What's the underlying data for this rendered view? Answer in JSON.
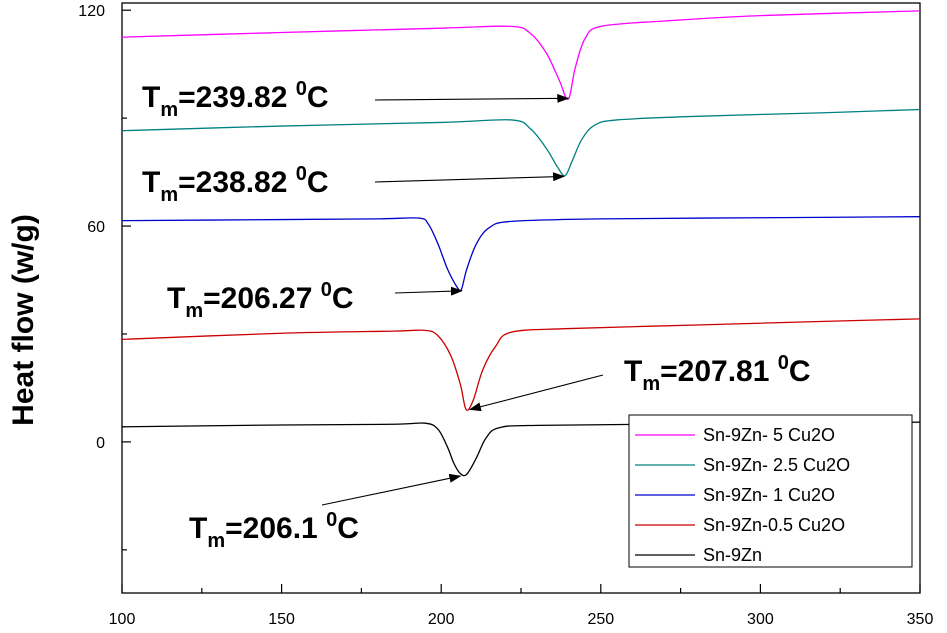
{
  "chart_data": {
    "type": "line",
    "title": "",
    "xlabel": "",
    "ylabel": "Heat flow (w/g)",
    "xlim": [
      100,
      350
    ],
    "ylim": [
      -42,
      122
    ],
    "x_ticks": [
      "100",
      "150",
      "200",
      "250",
      "300",
      "350"
    ],
    "y_ticks": [
      "0",
      "60",
      "120"
    ],
    "grid": false,
    "legend_position": "bottom-right",
    "series": [
      {
        "name": "Sn-9Zn- 5 Cu2O",
        "color": "#ff00ff",
        "points": [
          [
            100,
            112.5
          ],
          [
            150,
            113.8
          ],
          [
            200,
            115.0
          ],
          [
            222,
            115.5
          ],
          [
            228,
            113.5
          ],
          [
            233,
            108.0
          ],
          [
            237,
            100.5
          ],
          [
            239.8,
            95.3
          ],
          [
            242,
            104.0
          ],
          [
            245,
            112.0
          ],
          [
            250,
            115.5
          ],
          [
            270,
            117.0
          ],
          [
            300,
            118.5
          ],
          [
            350,
            119.8
          ]
        ]
      },
      {
        "name": "Sn-9Zn- 2.5 Cu2O",
        "color": "#008080",
        "points": [
          [
            100,
            86.5
          ],
          [
            150,
            87.8
          ],
          [
            200,
            88.8
          ],
          [
            222,
            89.5
          ],
          [
            228,
            87.0
          ],
          [
            233,
            81.5
          ],
          [
            236.5,
            76.3
          ],
          [
            238.8,
            74.0
          ],
          [
            241,
            78.0
          ],
          [
            244,
            84.0
          ],
          [
            248,
            88.0
          ],
          [
            255,
            89.5
          ],
          [
            280,
            90.5
          ],
          [
            320,
            91.5
          ],
          [
            350,
            92.4
          ]
        ]
      },
      {
        "name": "Sn-9Zn- 1 Cu2O",
        "color": "#0000cc",
        "points": [
          [
            100,
            61.5
          ],
          [
            150,
            61.8
          ],
          [
            180,
            62.0
          ],
          [
            193,
            62.2
          ],
          [
            196,
            60.5
          ],
          [
            199,
            55.0
          ],
          [
            202,
            48.0
          ],
          [
            205,
            43.0
          ],
          [
            206.3,
            42.3
          ],
          [
            208,
            48.0
          ],
          [
            211,
            55.0
          ],
          [
            215,
            59.5
          ],
          [
            222,
            61.3
          ],
          [
            250,
            62.0
          ],
          [
            300,
            62.3
          ],
          [
            350,
            62.6
          ]
        ]
      },
      {
        "name": "Sn-9Zn-0.5 Cu2O",
        "color": "#cc0000",
        "points": [
          [
            100,
            28.5
          ],
          [
            150,
            30.2
          ],
          [
            185,
            30.8
          ],
          [
            195,
            31.0
          ],
          [
            199,
            29.5
          ],
          [
            203,
            24.0
          ],
          [
            206,
            16.0
          ],
          [
            207.8,
            9.0
          ],
          [
            210,
            11.5
          ],
          [
            213,
            20.0
          ],
          [
            217,
            26.5
          ],
          [
            222,
            30.5
          ],
          [
            240,
            31.5
          ],
          [
            280,
            32.5
          ],
          [
            320,
            33.5
          ],
          [
            350,
            34.2
          ]
        ]
      },
      {
        "name": "Sn-9Zn",
        "color": "#000000",
        "points": [
          [
            100,
            4.2
          ],
          [
            150,
            4.7
          ],
          [
            185,
            4.9
          ],
          [
            195,
            5.2
          ],
          [
            199,
            3.5
          ],
          [
            202,
            -1.5
          ],
          [
            204,
            -6.0
          ],
          [
            206,
            -8.8
          ],
          [
            208,
            -9.0
          ],
          [
            211,
            -4.5
          ],
          [
            214,
            1.0
          ],
          [
            218,
            3.9
          ],
          [
            230,
            4.6
          ],
          [
            280,
            5.0
          ],
          [
            330,
            5.3
          ],
          [
            350,
            5.5
          ]
        ]
      }
    ],
    "annotations": [
      {
        "label_main": "T",
        "label_sub": "m",
        "label_rest": "=239.82 ",
        "label_sup": "0",
        "label_unit": "C",
        "arrow_to": [
          239.8,
          95.5
        ]
      },
      {
        "label_main": "T",
        "label_sub": "m",
        "label_rest": "=238.82 ",
        "label_sup": "0",
        "label_unit": "C",
        "arrow_to": [
          238.5,
          73.8
        ]
      },
      {
        "label_main": "T",
        "label_sub": "m",
        "label_rest": "=206.27 ",
        "label_sup": "0",
        "label_unit": "C",
        "arrow_to": [
          206.5,
          42.0
        ]
      },
      {
        "label_main": "T",
        "label_sub": "m",
        "label_rest": "=207.81 ",
        "label_sup": "0",
        "label_unit": "C",
        "arrow_to": [
          209.0,
          9.0
        ]
      },
      {
        "label_main": "T",
        "label_sub": "m",
        "label_rest": "=206.1 ",
        "label_sup": "0",
        "label_unit": "C",
        "arrow_to": [
          206.0,
          -9.5
        ]
      }
    ]
  }
}
